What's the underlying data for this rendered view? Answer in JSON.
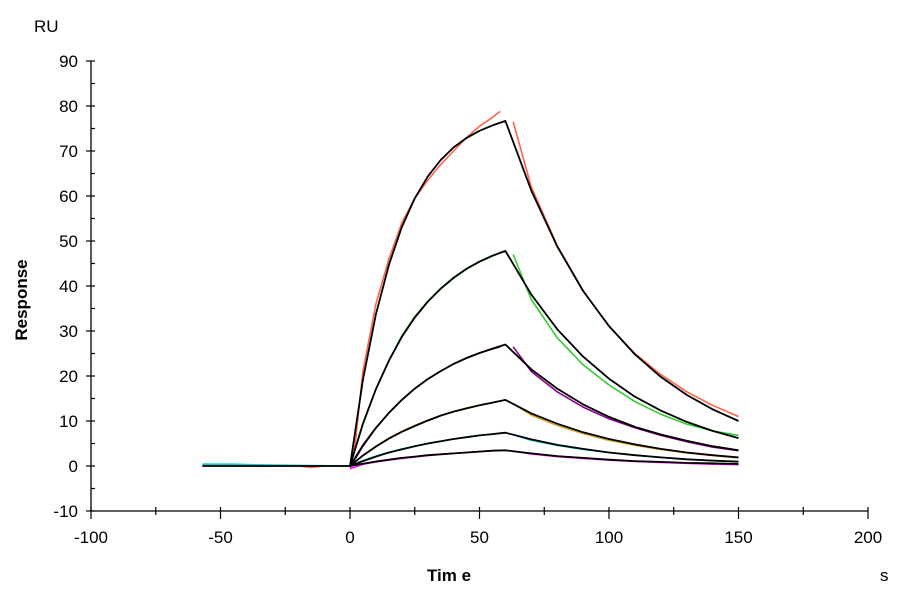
{
  "chart_data": {
    "type": "line",
    "title": "",
    "xlabel": "Tim e",
    "ylabel": "Response",
    "x_unit": "s",
    "y_unit": "RU",
    "xlim": [
      -100,
      200
    ],
    "ylim": [
      -10,
      90
    ],
    "x_ticks": [
      -100,
      -50,
      0,
      50,
      100,
      150,
      200
    ],
    "y_ticks": [
      -10,
      0,
      10,
      20,
      30,
      40,
      50,
      60,
      70,
      80,
      90
    ],
    "grid": false,
    "legend": "none",
    "measured_series": [
      {
        "color": "#ff6347",
        "segments": [
          [
            [
              -57,
              0.1
            ],
            [
              -20,
              0.0
            ],
            [
              -15,
              -0.3
            ],
            [
              -10,
              0
            ],
            [
              0,
              0
            ]
          ],
          [
            [
              0,
              0
            ],
            [
              2,
              5
            ],
            [
              5,
              21
            ],
            [
              10,
              36
            ],
            [
              15,
              46
            ],
            [
              20,
              54
            ],
            [
              25,
              59.5
            ],
            [
              30,
              63.5
            ],
            [
              35,
              67
            ],
            [
              40,
              70
            ],
            [
              45,
              73
            ],
            [
              50,
              75.5
            ],
            [
              55,
              77.5
            ],
            [
              58,
              78.8
            ]
          ],
          [
            [
              63,
              76.5
            ],
            [
              70,
              62
            ],
            [
              80,
              49
            ],
            [
              90,
              39
            ],
            [
              100,
              31
            ],
            [
              110,
              25
            ],
            [
              120,
              20.3
            ],
            [
              130,
              16.5
            ],
            [
              140,
              13.5
            ],
            [
              150,
              11.0
            ]
          ]
        ]
      },
      {
        "color": "#32cd32",
        "segments": [
          [
            [
              0,
              0
            ],
            [
              5,
              9.2
            ],
            [
              10,
              17.0
            ],
            [
              15,
              23.5
            ],
            [
              20,
              28.9
            ],
            [
              25,
              33.2
            ],
            [
              30,
              36.6
            ],
            [
              35,
              39.5
            ],
            [
              40,
              41.9
            ],
            [
              45,
              43.9
            ],
            [
              50,
              45.5
            ],
            [
              55,
              46.8
            ],
            [
              58,
              47.4
            ]
          ],
          [
            [
              63,
              47
            ],
            [
              70,
              37
            ],
            [
              80,
              28.5
            ],
            [
              90,
              22.5
            ],
            [
              100,
              18
            ],
            [
              110,
              14.3
            ],
            [
              120,
              11.5
            ],
            [
              130,
              9.3
            ],
            [
              140,
              7.8
            ],
            [
              150,
              6.8
            ]
          ]
        ]
      },
      {
        "color": "#8b008b",
        "segments": [
          [
            [
              0,
              -0.3
            ],
            [
              5,
              4.4
            ],
            [
              10,
              8.4
            ],
            [
              15,
              11.8
            ],
            [
              20,
              14.7
            ],
            [
              25,
              17.2
            ],
            [
              30,
              19.3
            ],
            [
              35,
              21.1
            ],
            [
              40,
              22.7
            ],
            [
              45,
              24.0
            ],
            [
              50,
              25.1
            ],
            [
              55,
              26.0
            ],
            [
              58,
              26.5
            ]
          ],
          [
            [
              63,
              26.5
            ],
            [
              70,
              21
            ],
            [
              80,
              16.5
            ],
            [
              90,
              13.1
            ],
            [
              100,
              10.5
            ],
            [
              110,
              8.5
            ],
            [
              120,
              6.8
            ],
            [
              130,
              5.4
            ],
            [
              140,
              4.2
            ],
            [
              150,
              3.4
            ]
          ]
        ]
      },
      {
        "color": "#daa520",
        "segments": [
          [
            [
              0,
              0
            ],
            [
              5,
              2.4
            ],
            [
              10,
              4.4
            ],
            [
              15,
              6.2
            ],
            [
              20,
              7.7
            ],
            [
              25,
              9.0
            ],
            [
              30,
              10.2
            ],
            [
              35,
              11.2
            ],
            [
              40,
              12.1
            ],
            [
              45,
              12.9
            ],
            [
              50,
              13.5
            ],
            [
              55,
              14.1
            ],
            [
              58,
              14.4
            ]
          ],
          [
            [
              63,
              13.9
            ],
            [
              70,
              11.3
            ],
            [
              80,
              9.0
            ],
            [
              90,
              7.2
            ],
            [
              100,
              5.7
            ],
            [
              110,
              4.6
            ],
            [
              120,
              3.7
            ],
            [
              130,
              2.9
            ],
            [
              140,
              2.3
            ],
            [
              150,
              1.8
            ]
          ]
        ]
      },
      {
        "color": "#00ced1",
        "segments": [
          [
            [
              -57,
              0.4
            ],
            [
              -45,
              0.4
            ],
            [
              -40,
              0.3
            ],
            [
              -30,
              0.2
            ],
            [
              0,
              0
            ]
          ],
          [
            [
              0,
              0
            ],
            [
              5,
              1.2
            ],
            [
              10,
              2.2
            ],
            [
              15,
              3.0
            ],
            [
              20,
              3.8
            ],
            [
              25,
              4.4
            ],
            [
              30,
              5.0
            ],
            [
              35,
              5.5
            ],
            [
              40,
              6.0
            ],
            [
              45,
              6.4
            ],
            [
              50,
              6.8
            ],
            [
              55,
              7.1
            ],
            [
              58,
              7.3
            ]
          ],
          [
            [
              63,
              7.0
            ],
            [
              70,
              5.7
            ],
            [
              80,
              4.6
            ],
            [
              90,
              3.7
            ],
            [
              100,
              3.0
            ],
            [
              110,
              2.4
            ],
            [
              120,
              1.9
            ],
            [
              130,
              1.5
            ],
            [
              140,
              1.2
            ],
            [
              150,
              1.0
            ]
          ]
        ]
      },
      {
        "color": "#ff00ff",
        "segments": [
          [
            [
              0,
              -0.6
            ],
            [
              5,
              0.4
            ],
            [
              10,
              0.9
            ],
            [
              15,
              1.3
            ],
            [
              20,
              1.7
            ],
            [
              25,
              2.0
            ],
            [
              30,
              2.3
            ],
            [
              35,
              2.6
            ],
            [
              40,
              2.8
            ],
            [
              45,
              3.0
            ],
            [
              50,
              3.2
            ],
            [
              55,
              3.4
            ],
            [
              58,
              3.5
            ]
          ],
          [
            [
              63,
              3.3
            ],
            [
              70,
              2.7
            ],
            [
              80,
              2.1
            ],
            [
              90,
              1.7
            ],
            [
              100,
              1.3
            ],
            [
              110,
              1.0
            ],
            [
              120,
              0.8
            ],
            [
              130,
              0.6
            ],
            [
              140,
              0.4
            ],
            [
              150,
              0.3
            ]
          ]
        ]
      }
    ],
    "fit_color": "#000000",
    "fit_series": [
      [
        [
          -57,
          0
        ],
        [
          0,
          0
        ],
        [
          5,
          19.1
        ],
        [
          10,
          33.7
        ],
        [
          15,
          44.7
        ],
        [
          20,
          53.1
        ],
        [
          25,
          59.5
        ],
        [
          30,
          64.3
        ],
        [
          35,
          68.0
        ],
        [
          40,
          70.8
        ],
        [
          45,
          72.9
        ],
        [
          50,
          74.5
        ],
        [
          55,
          75.7
        ],
        [
          60,
          76.7
        ],
        [
          70,
          61.2
        ],
        [
          80,
          48.8
        ],
        [
          90,
          38.9
        ],
        [
          100,
          31.1
        ],
        [
          110,
          24.8
        ],
        [
          120,
          19.8
        ],
        [
          130,
          15.8
        ],
        [
          140,
          12.6
        ],
        [
          150,
          10.0
        ]
      ],
      [
        [
          0,
          0
        ],
        [
          5,
          9.4
        ],
        [
          10,
          17.1
        ],
        [
          15,
          23.4
        ],
        [
          20,
          28.7
        ],
        [
          25,
          33.0
        ],
        [
          30,
          36.5
        ],
        [
          35,
          39.4
        ],
        [
          40,
          41.8
        ],
        [
          45,
          43.8
        ],
        [
          50,
          45.4
        ],
        [
          55,
          46.7
        ],
        [
          60,
          47.8
        ],
        [
          70,
          38.1
        ],
        [
          80,
          30.4
        ],
        [
          90,
          24.3
        ],
        [
          100,
          19.4
        ],
        [
          110,
          15.4
        ],
        [
          120,
          12.3
        ],
        [
          130,
          9.8
        ],
        [
          140,
          7.8
        ],
        [
          150,
          6.2
        ]
      ],
      [
        [
          0,
          0
        ],
        [
          5,
          4.6
        ],
        [
          10,
          8.5
        ],
        [
          15,
          11.8
        ],
        [
          20,
          14.7
        ],
        [
          25,
          17.2
        ],
        [
          30,
          19.3
        ],
        [
          35,
          21.1
        ],
        [
          40,
          22.7
        ],
        [
          45,
          24.0
        ],
        [
          50,
          25.1
        ],
        [
          55,
          26.1
        ],
        [
          60,
          27.0
        ],
        [
          70,
          21.5
        ],
        [
          80,
          17.2
        ],
        [
          90,
          13.7
        ],
        [
          100,
          10.9
        ],
        [
          110,
          8.7
        ],
        [
          120,
          7.0
        ],
        [
          130,
          5.6
        ],
        [
          140,
          4.4
        ],
        [
          150,
          3.5
        ]
      ],
      [
        [
          0,
          0
        ],
        [
          5,
          2.3
        ],
        [
          10,
          4.3
        ],
        [
          15,
          6.1
        ],
        [
          20,
          7.6
        ],
        [
          25,
          8.9
        ],
        [
          30,
          10.1
        ],
        [
          35,
          11.2
        ],
        [
          40,
          12.1
        ],
        [
          45,
          12.8
        ],
        [
          50,
          13.5
        ],
        [
          55,
          14.1
        ],
        [
          60,
          14.7
        ],
        [
          70,
          11.7
        ],
        [
          80,
          9.4
        ],
        [
          90,
          7.5
        ],
        [
          100,
          6.0
        ],
        [
          110,
          4.8
        ],
        [
          120,
          3.8
        ],
        [
          130,
          3.0
        ],
        [
          140,
          2.4
        ],
        [
          150,
          1.9
        ]
      ],
      [
        [
          0,
          0
        ],
        [
          5,
          1.1
        ],
        [
          10,
          2.1
        ],
        [
          15,
          3.0
        ],
        [
          20,
          3.7
        ],
        [
          25,
          4.4
        ],
        [
          30,
          5.0
        ],
        [
          35,
          5.5
        ],
        [
          40,
          6.0
        ],
        [
          45,
          6.4
        ],
        [
          50,
          6.8
        ],
        [
          55,
          7.1
        ],
        [
          60,
          7.4
        ],
        [
          70,
          5.9
        ],
        [
          80,
          4.7
        ],
        [
          90,
          3.8
        ],
        [
          100,
          3.0
        ],
        [
          110,
          2.4
        ],
        [
          120,
          1.9
        ],
        [
          130,
          1.5
        ],
        [
          140,
          1.2
        ],
        [
          150,
          0.95
        ]
      ],
      [
        [
          0,
          0
        ],
        [
          5,
          0.5
        ],
        [
          10,
          1.0
        ],
        [
          15,
          1.4
        ],
        [
          20,
          1.8
        ],
        [
          25,
          2.1
        ],
        [
          30,
          2.4
        ],
        [
          35,
          2.6
        ],
        [
          40,
          2.8
        ],
        [
          45,
          3.0
        ],
        [
          50,
          3.2
        ],
        [
          55,
          3.4
        ],
        [
          60,
          3.5
        ],
        [
          70,
          2.8
        ],
        [
          80,
          2.2
        ],
        [
          90,
          1.8
        ],
        [
          100,
          1.4
        ],
        [
          110,
          1.1
        ],
        [
          120,
          0.9
        ],
        [
          130,
          0.7
        ],
        [
          140,
          0.6
        ],
        [
          150,
          0.45
        ]
      ]
    ]
  }
}
